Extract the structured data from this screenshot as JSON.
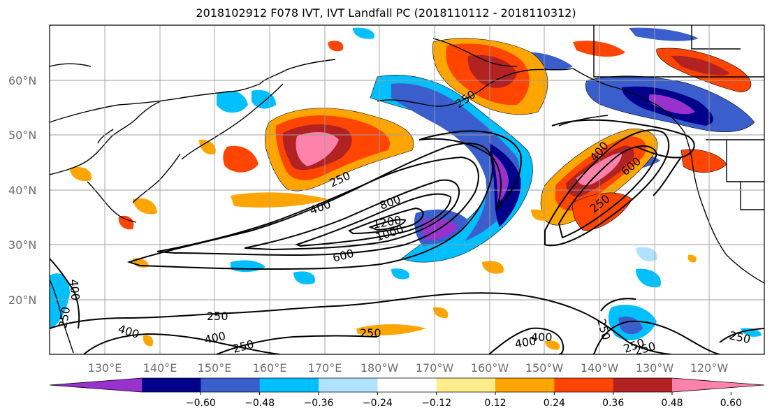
{
  "title": "2018102912 F078 IVT, IVT Landfall PC (2018110112 - 2018110312)",
  "map": {
    "lat_labels": [
      "60°N",
      "50°N",
      "40°N",
      "30°N",
      "20°N"
    ],
    "lon_labels": [
      "130°E",
      "140°E",
      "150°E",
      "160°E",
      "170°E",
      "180°W",
      "170°W",
      "160°W",
      "150°W",
      "140°W",
      "130°W",
      "120°W"
    ],
    "contour_labels": [
      "250",
      "250",
      "400",
      "800",
      "1200",
      "1000",
      "600",
      "250",
      "400",
      "600",
      "250",
      "250",
      "250",
      "400",
      "400",
      "250",
      "250",
      "400",
      "250",
      "250",
      "250",
      "400",
      "400"
    ]
  },
  "colorbar": {
    "colors": [
      "#9932cc",
      "#00008b",
      "#3a5fcd",
      "#00bfff",
      "#b0e2ff",
      "#ffffff",
      "#ffec8b",
      "#ffa500",
      "#ff4500",
      "#b22222",
      "#ff82ab"
    ],
    "ticks": [
      "−0.60",
      "−0.48",
      "−0.36",
      "−0.24",
      "−0.12",
      "0.12",
      "0.24",
      "0.36",
      "0.48",
      "0.60"
    ]
  }
}
